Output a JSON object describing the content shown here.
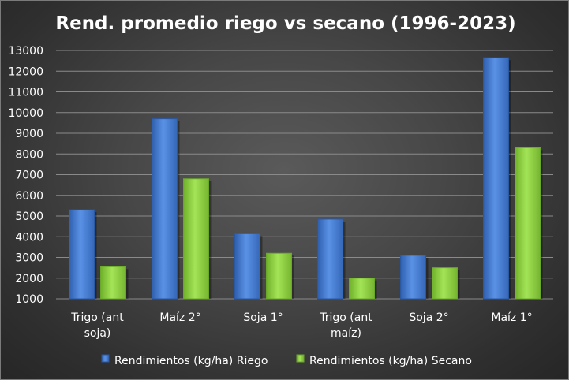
{
  "chart_data": {
    "type": "bar",
    "title": "Rend. promedio riego vs secano (1996-2023)",
    "categories": [
      "Trigo (ant soja)",
      "Maíz 2°",
      "Soja 1°",
      "Trigo (ant maíz)",
      "Soja 2°",
      "Maíz 1°"
    ],
    "category_lines": [
      [
        "Trigo (ant",
        "soja)"
      ],
      [
        "Maíz 2°"
      ],
      [
        "Soja 1°"
      ],
      [
        "Trigo (ant",
        "maíz)"
      ],
      [
        "Soja 2°"
      ],
      [
        "Maíz 1°"
      ]
    ],
    "series": [
      {
        "name": "Rendimientos (kg/ha) Riego",
        "color": "#4a7fd6",
        "values": [
          5300,
          9700,
          4150,
          4850,
          3100,
          12650
        ]
      },
      {
        "name": "Rendimientos (kg/ha) Secano",
        "color": "#8fd13f",
        "values": [
          2550,
          6800,
          3200,
          2000,
          2500,
          8300
        ]
      }
    ],
    "xlabel": "",
    "ylabel": "",
    "ylim": [
      1000,
      13000
    ],
    "yticks": [
      1000,
      2000,
      3000,
      4000,
      5000,
      6000,
      7000,
      8000,
      9000,
      10000,
      11000,
      12000,
      13000
    ],
    "grid": true,
    "legend": "bottom"
  }
}
